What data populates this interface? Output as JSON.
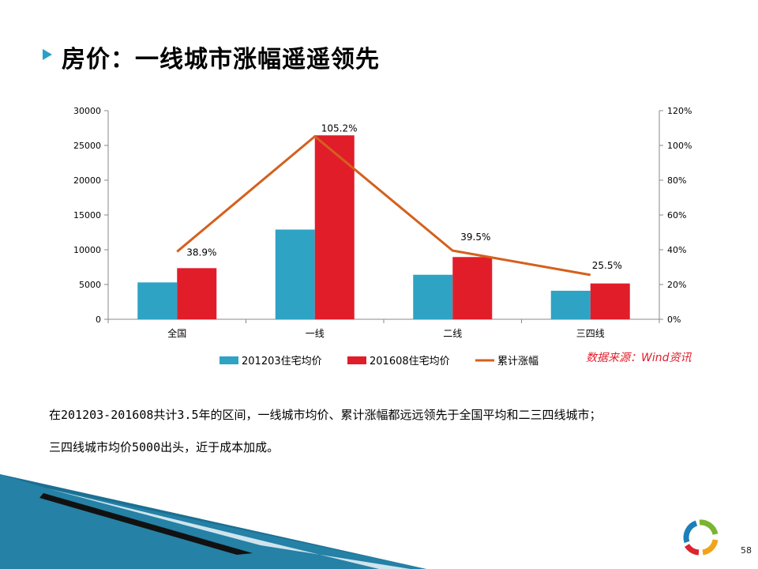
{
  "slide": {
    "title": "房价：一线城市涨幅遥遥领先",
    "source_note": "数据来源：Wind资讯",
    "text_line1": "在201203-201608共计3.5年的区间，一线城市均价、累计涨幅都远远领先于全国平均和二三四线城市；",
    "text_line2": "三四线城市均价5000出头，近于成本加成。",
    "page_number": "58"
  },
  "chart_data": {
    "type": "bar",
    "categories": [
      "全国",
      "一线",
      "二线",
      "三四线"
    ],
    "series": [
      {
        "name": "201203住宅均价",
        "type": "bar",
        "axis": "left",
        "color": "#2ea3c4",
        "values": [
          5300,
          12900,
          6400,
          4100
        ]
      },
      {
        "name": "201608住宅均价",
        "type": "bar",
        "axis": "left",
        "color": "#e11d2a",
        "values": [
          7350,
          26450,
          8950,
          5150
        ]
      },
      {
        "name": "累计涨幅",
        "type": "line",
        "axis": "right",
        "color": "#d4601c",
        "values": [
          38.9,
          105.2,
          39.5,
          25.5
        ],
        "labels": [
          "38.9%",
          "105.2%",
          "39.5%",
          "25.5%"
        ]
      }
    ],
    "y_left": {
      "min": 0,
      "max": 30000,
      "ticks": [
        "0",
        "5000",
        "10000",
        "15000",
        "20000",
        "25000",
        "30000"
      ]
    },
    "y_right": {
      "min": 0,
      "max": 120,
      "ticks": [
        "0%",
        "20%",
        "40%",
        "60%",
        "80%",
        "100%",
        "120%"
      ]
    },
    "legend_position": "bottom",
    "grid": false
  }
}
